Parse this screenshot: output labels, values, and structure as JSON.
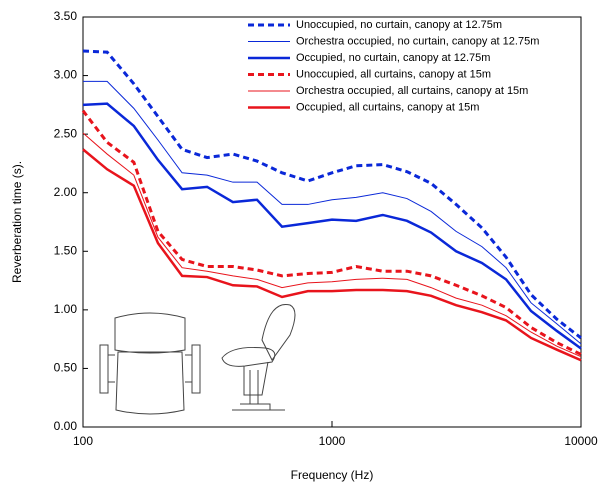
{
  "chart_data": {
    "type": "line",
    "x_label": "Frequency (Hz)",
    "y_label": "Reverberation time (s).",
    "x": [
      100,
      125,
      160,
      200,
      250,
      315,
      400,
      500,
      630,
      800,
      1000,
      1250,
      1600,
      2000,
      2500,
      3150,
      4000,
      5000,
      6300,
      8000,
      10000
    ],
    "x_log": true,
    "xlim": [
      100,
      10000
    ],
    "xticks": [
      100,
      1000,
      10000
    ],
    "ylim": [
      0,
      3.5
    ],
    "yticks": [
      {
        "value": 0,
        "label": "0.00"
      },
      {
        "value": 0.5,
        "label": "0.50"
      },
      {
        "value": 1,
        "label": "1.00"
      },
      {
        "value": 1.5,
        "label": "1.50"
      },
      {
        "value": 2,
        "label": "2.00"
      },
      {
        "value": 2.5,
        "label": "2.50"
      },
      {
        "value": 3,
        "label": "3.00"
      },
      {
        "value": 3.5,
        "label": "3.50"
      }
    ],
    "legend": "top-right",
    "series": [
      {
        "name": "Unoccupied, no curtain, canopy at 12.75m",
        "color": "#0a28d8",
        "style": "dotted",
        "width": 3,
        "values": [
          3.21,
          3.2,
          2.93,
          2.65,
          2.37,
          2.3,
          2.33,
          2.27,
          2.17,
          2.1,
          2.17,
          2.23,
          2.24,
          2.18,
          2.08,
          1.9,
          1.7,
          1.45,
          1.13,
          0.92,
          0.76
        ]
      },
      {
        "name": "Orchestra occupied, no curtain, canopy at 12.75m",
        "color": "#0a28d8",
        "style": "solid",
        "width": 1,
        "values": [
          2.95,
          2.95,
          2.72,
          2.45,
          2.17,
          2.15,
          2.09,
          2.09,
          1.9,
          1.9,
          1.94,
          1.96,
          2.0,
          1.95,
          1.84,
          1.67,
          1.54,
          1.36,
          1.06,
          0.88,
          0.71
        ]
      },
      {
        "name": "Occupied, no curtain, canopy at 12.75m",
        "color": "#0a28d8",
        "style": "solid",
        "width": 2.5,
        "values": [
          2.75,
          2.76,
          2.57,
          2.28,
          2.03,
          2.05,
          1.92,
          1.94,
          1.71,
          1.74,
          1.77,
          1.76,
          1.81,
          1.76,
          1.66,
          1.5,
          1.4,
          1.26,
          0.99,
          0.82,
          0.67
        ]
      },
      {
        "name": "Unoccupied, all curtains, canopy at 15m",
        "color": "#e8141c",
        "style": "dotted",
        "width": 3,
        "values": [
          2.7,
          2.43,
          2.26,
          1.67,
          1.43,
          1.37,
          1.37,
          1.34,
          1.29,
          1.31,
          1.32,
          1.37,
          1.33,
          1.33,
          1.29,
          1.21,
          1.12,
          1.02,
          0.85,
          0.72,
          0.62
        ]
      },
      {
        "name": "Orchestra occupied, all curtains, canopy at 15m",
        "color": "#e8141c",
        "style": "solid",
        "width": 1,
        "values": [
          2.51,
          2.33,
          2.15,
          1.62,
          1.36,
          1.33,
          1.29,
          1.26,
          1.19,
          1.23,
          1.24,
          1.26,
          1.27,
          1.26,
          1.19,
          1.1,
          1.04,
          0.95,
          0.81,
          0.69,
          0.6
        ]
      },
      {
        "name": "Occupied, all curtains, canopy at 15m",
        "color": "#e8141c",
        "style": "solid",
        "width": 2.5,
        "values": [
          2.37,
          2.2,
          2.06,
          1.57,
          1.29,
          1.28,
          1.21,
          1.2,
          1.11,
          1.16,
          1.16,
          1.17,
          1.17,
          1.16,
          1.12,
          1.04,
          0.98,
          0.91,
          0.76,
          0.66,
          0.57
        ]
      }
    ]
  }
}
